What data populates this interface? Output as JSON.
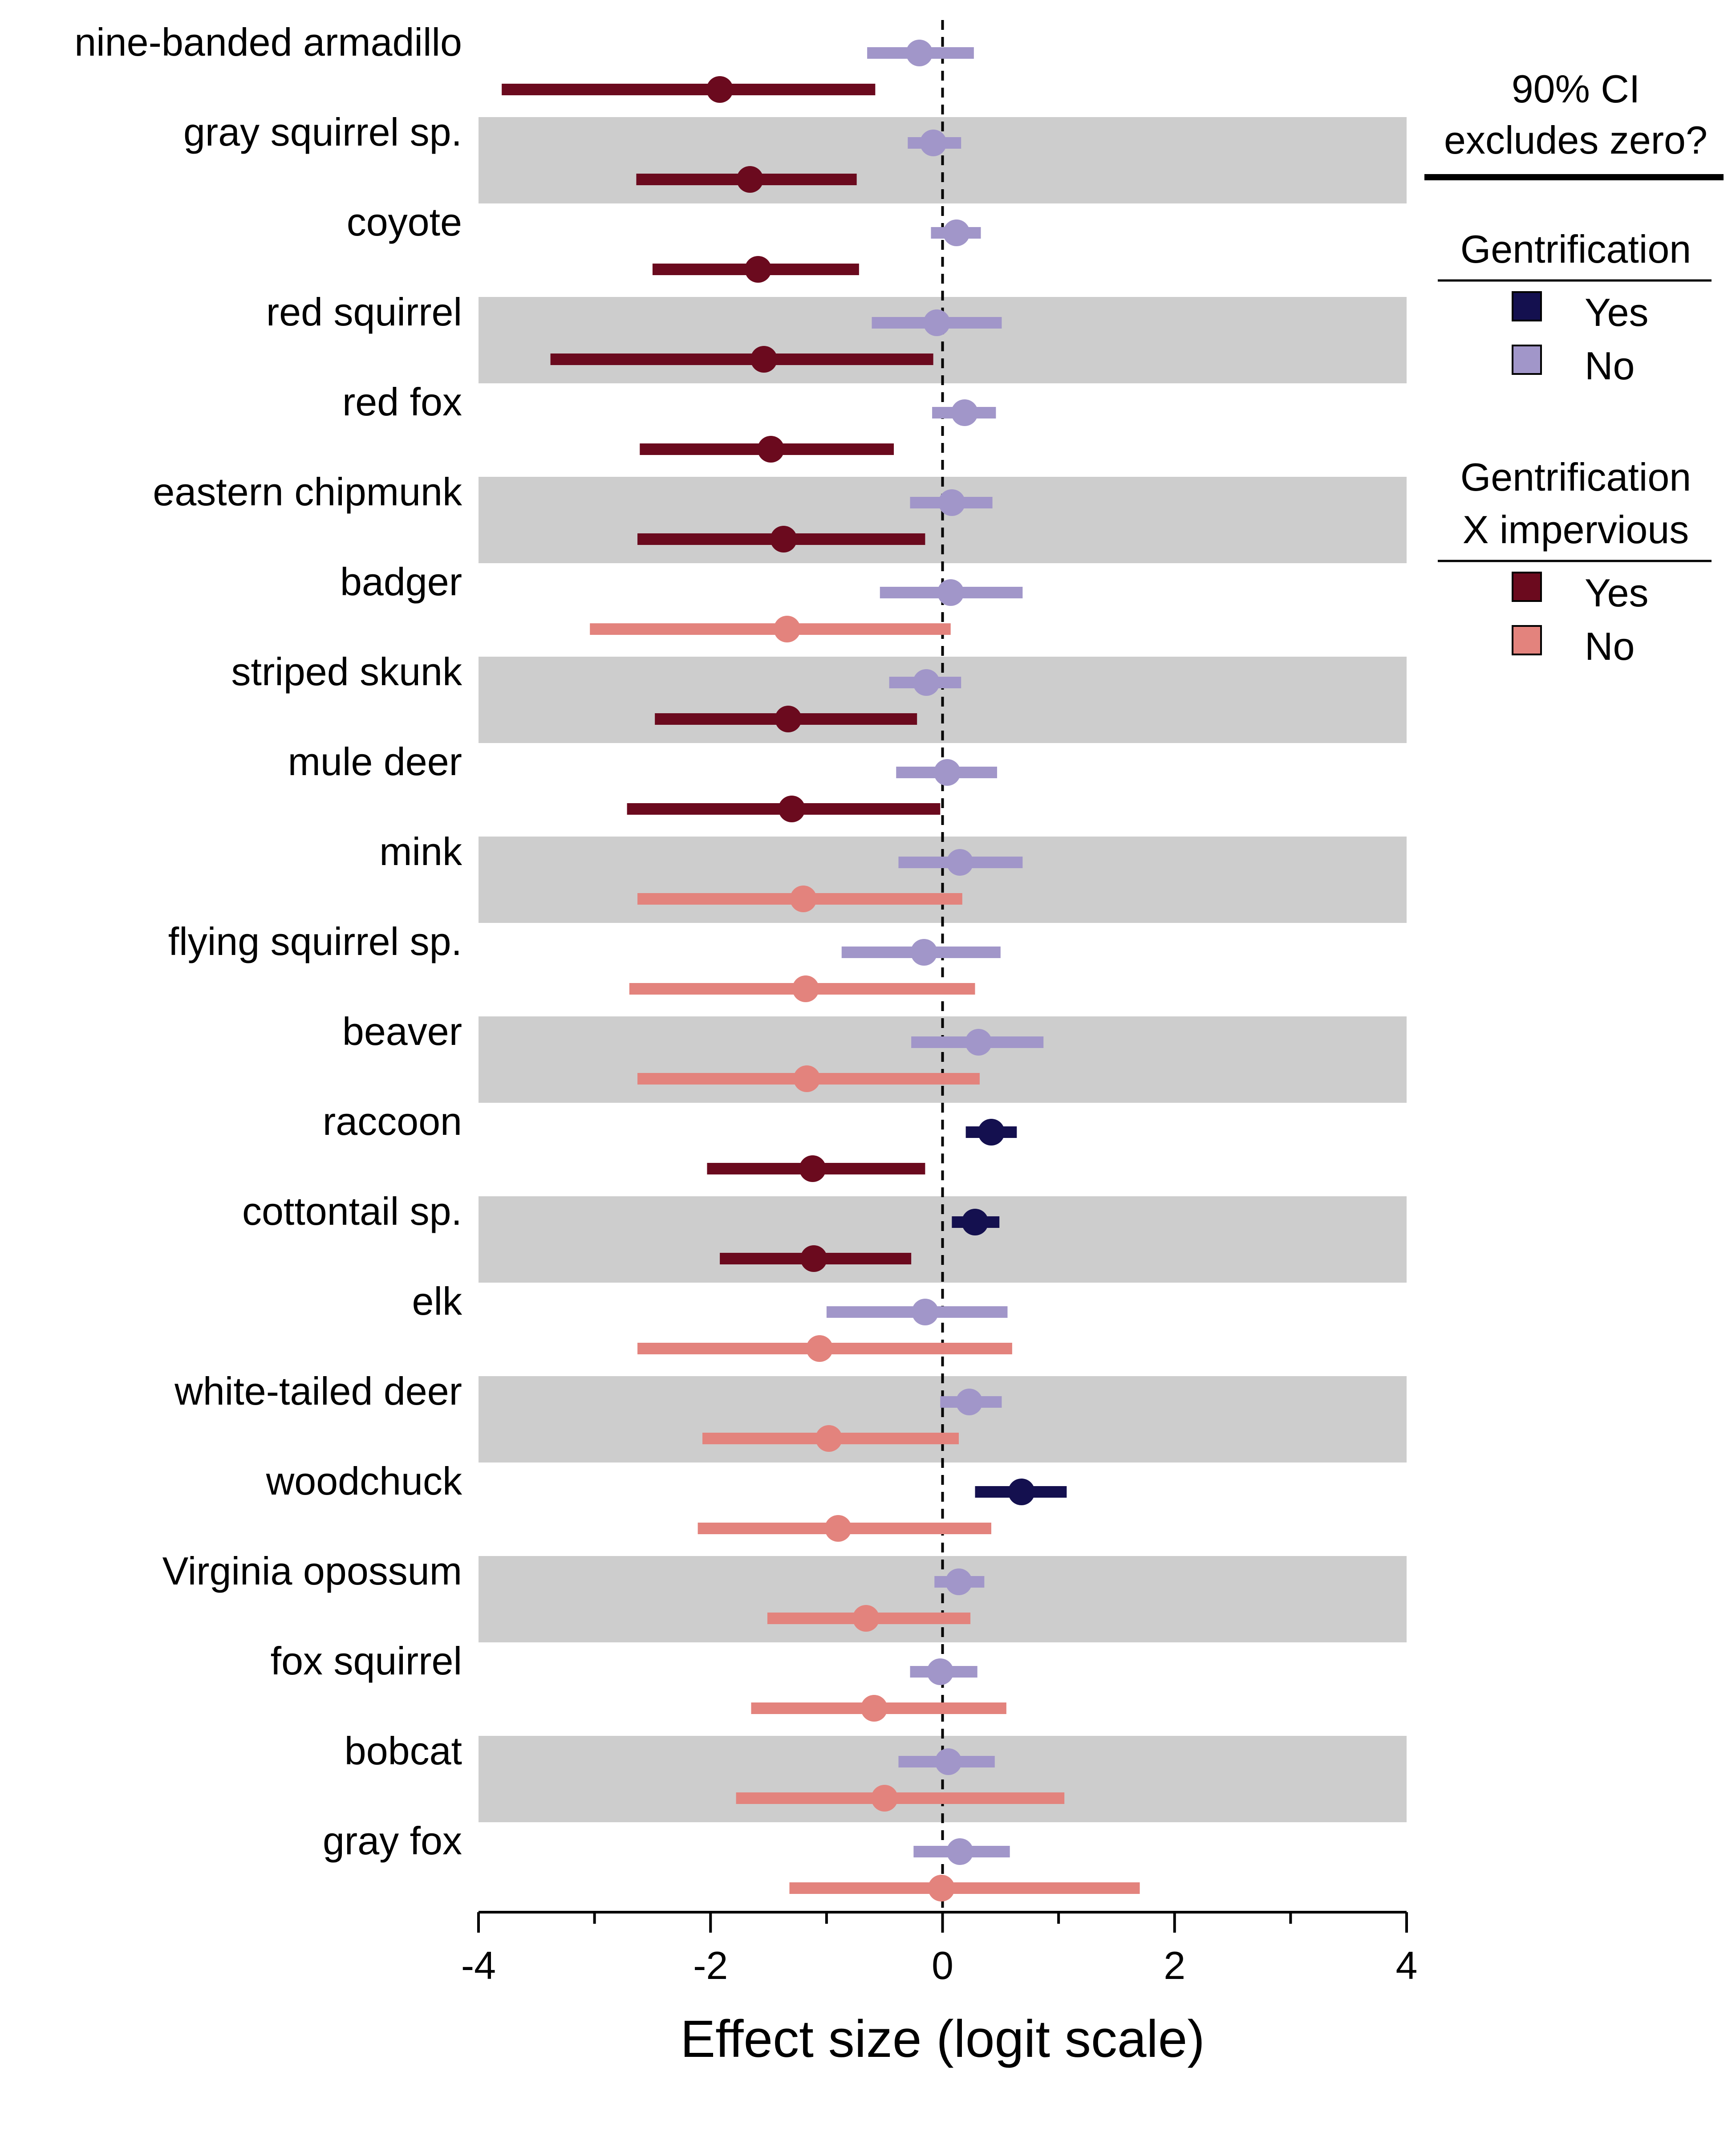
{
  "chart_data": {
    "type": "forest",
    "xlabel": "Effect size (logit scale)",
    "xlim": [
      -4,
      4
    ],
    "x_ticks": [
      -4,
      -2,
      0,
      2,
      4
    ],
    "x_tick_labels": [
      "-4",
      "-2",
      "0",
      "2",
      "4"
    ],
    "reference_line": 0,
    "alternating_row_shading": true,
    "legend": {
      "placement": "right",
      "title": "90% CI excludes zero?",
      "title_lines": [
        "90% CI",
        "excludes zero?"
      ],
      "groups": [
        {
          "title_lines": [
            "Gentrification"
          ],
          "entries": [
            {
              "label": "Yes",
              "color": "#14104f"
            },
            {
              "label": "No",
              "color": "#a196c9"
            }
          ]
        },
        {
          "title_lines": [
            "Gentrification",
            "X impervious"
          ],
          "entries": [
            {
              "label": "Yes",
              "color": "#6b0a1e"
            },
            {
              "label": "No",
              "color": "#e3837d"
            }
          ]
        }
      ]
    },
    "colors": {
      "gentrification_yes": "#14104f",
      "gentrification_no": "#a196c9",
      "interaction_yes": "#6b0a1e",
      "interaction_no": "#e3837d",
      "shade": "#cdcdcd"
    },
    "series": [
      {
        "name": "Gentrification",
        "key": "gentrification"
      },
      {
        "name": "Gentrification X impervious",
        "key": "interaction"
      }
    ],
    "species": [
      {
        "name": "nine-banded armadillo",
        "gentrification": {
          "est": -0.2,
          "lo": -0.65,
          "hi": 0.27,
          "excludes_zero": false
        },
        "interaction": {
          "est": -1.92,
          "lo": -3.8,
          "hi": -0.58,
          "excludes_zero": true
        }
      },
      {
        "name": "gray squirrel sp.",
        "gentrification": {
          "est": -0.08,
          "lo": -0.3,
          "hi": 0.16,
          "excludes_zero": false
        },
        "interaction": {
          "est": -1.66,
          "lo": -2.64,
          "hi": -0.74,
          "excludes_zero": true
        }
      },
      {
        "name": "coyote",
        "gentrification": {
          "est": 0.12,
          "lo": -0.1,
          "hi": 0.33,
          "excludes_zero": false
        },
        "interaction": {
          "est": -1.59,
          "lo": -2.5,
          "hi": -0.72,
          "excludes_zero": true
        }
      },
      {
        "name": "red squirrel",
        "gentrification": {
          "est": -0.05,
          "lo": -0.61,
          "hi": 0.51,
          "excludes_zero": false
        },
        "interaction": {
          "est": -1.54,
          "lo": -3.38,
          "hi": -0.08,
          "excludes_zero": true
        }
      },
      {
        "name": "red fox",
        "gentrification": {
          "est": 0.19,
          "lo": -0.09,
          "hi": 0.46,
          "excludes_zero": false
        },
        "interaction": {
          "est": -1.48,
          "lo": -2.61,
          "hi": -0.42,
          "excludes_zero": true
        }
      },
      {
        "name": "eastern chipmunk",
        "gentrification": {
          "est": 0.08,
          "lo": -0.28,
          "hi": 0.43,
          "excludes_zero": false
        },
        "interaction": {
          "est": -1.37,
          "lo": -2.63,
          "hi": -0.15,
          "excludes_zero": true
        }
      },
      {
        "name": "badger",
        "gentrification": {
          "est": 0.07,
          "lo": -0.54,
          "hi": 0.69,
          "excludes_zero": false
        },
        "interaction": {
          "est": -1.34,
          "lo": -3.04,
          "hi": 0.07,
          "excludes_zero": false
        }
      },
      {
        "name": "striped skunk",
        "gentrification": {
          "est": -0.14,
          "lo": -0.46,
          "hi": 0.16,
          "excludes_zero": false
        },
        "interaction": {
          "est": -1.33,
          "lo": -2.48,
          "hi": -0.22,
          "excludes_zero": true
        }
      },
      {
        "name": "mule deer",
        "gentrification": {
          "est": 0.04,
          "lo": -0.4,
          "hi": 0.47,
          "excludes_zero": false
        },
        "interaction": {
          "est": -1.3,
          "lo": -2.72,
          "hi": -0.02,
          "excludes_zero": true
        }
      },
      {
        "name": "mink",
        "gentrification": {
          "est": 0.15,
          "lo": -0.38,
          "hi": 0.69,
          "excludes_zero": false
        },
        "interaction": {
          "est": -1.2,
          "lo": -2.63,
          "hi": 0.17,
          "excludes_zero": false
        }
      },
      {
        "name": "flying squirrel sp.",
        "gentrification": {
          "est": -0.16,
          "lo": -0.87,
          "hi": 0.5,
          "excludes_zero": false
        },
        "interaction": {
          "est": -1.18,
          "lo": -2.7,
          "hi": 0.28,
          "excludes_zero": false
        }
      },
      {
        "name": "beaver",
        "gentrification": {
          "est": 0.31,
          "lo": -0.27,
          "hi": 0.87,
          "excludes_zero": false
        },
        "interaction": {
          "est": -1.17,
          "lo": -2.63,
          "hi": 0.32,
          "excludes_zero": false
        }
      },
      {
        "name": "raccoon",
        "gentrification": {
          "est": 0.42,
          "lo": 0.2,
          "hi": 0.64,
          "excludes_zero": true
        },
        "interaction": {
          "est": -1.12,
          "lo": -2.03,
          "hi": -0.15,
          "excludes_zero": true
        }
      },
      {
        "name": "cottontail sp.",
        "gentrification": {
          "est": 0.28,
          "lo": 0.08,
          "hi": 0.49,
          "excludes_zero": true
        },
        "interaction": {
          "est": -1.11,
          "lo": -1.92,
          "hi": -0.27,
          "excludes_zero": true
        }
      },
      {
        "name": "elk",
        "gentrification": {
          "est": -0.15,
          "lo": -1.0,
          "hi": 0.56,
          "excludes_zero": false
        },
        "interaction": {
          "est": -1.06,
          "lo": -2.63,
          "hi": 0.6,
          "excludes_zero": false
        }
      },
      {
        "name": "white-tailed deer",
        "gentrification": {
          "est": 0.23,
          "lo": -0.02,
          "hi": 0.51,
          "excludes_zero": false
        },
        "interaction": {
          "est": -0.98,
          "lo": -2.07,
          "hi": 0.14,
          "excludes_zero": false
        }
      },
      {
        "name": "woodchuck",
        "gentrification": {
          "est": 0.68,
          "lo": 0.28,
          "hi": 1.07,
          "excludes_zero": true
        },
        "interaction": {
          "est": -0.9,
          "lo": -2.11,
          "hi": 0.42,
          "excludes_zero": false
        }
      },
      {
        "name": "Virginia opossum",
        "gentrification": {
          "est": 0.14,
          "lo": -0.07,
          "hi": 0.36,
          "excludes_zero": false
        },
        "interaction": {
          "est": -0.66,
          "lo": -1.51,
          "hi": 0.24,
          "excludes_zero": false
        }
      },
      {
        "name": "fox squirrel",
        "gentrification": {
          "est": -0.02,
          "lo": -0.28,
          "hi": 0.3,
          "excludes_zero": false
        },
        "interaction": {
          "est": -0.59,
          "lo": -1.65,
          "hi": 0.55,
          "excludes_zero": false
        }
      },
      {
        "name": "bobcat",
        "gentrification": {
          "est": 0.05,
          "lo": -0.38,
          "hi": 0.45,
          "excludes_zero": false
        },
        "interaction": {
          "est": -0.5,
          "lo": -1.78,
          "hi": 1.05,
          "excludes_zero": false
        }
      },
      {
        "name": "gray fox",
        "gentrification": {
          "est": 0.15,
          "lo": -0.25,
          "hi": 0.58,
          "excludes_zero": false
        },
        "interaction": {
          "est": -0.01,
          "lo": -1.32,
          "hi": 1.7,
          "excludes_zero": false
        }
      }
    ]
  }
}
